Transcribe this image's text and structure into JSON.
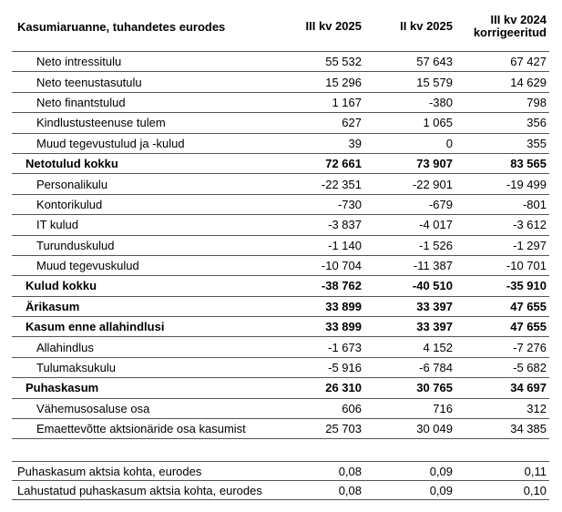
{
  "colors": {
    "background": "#ffffff",
    "text": "#000000",
    "rule_line": "#555555"
  },
  "header": {
    "title": "Kasumiaruanne, tuhandetes eurodes",
    "columns": [
      "III kv 2025",
      "II kv 2025",
      "III kv 2024 korrigeeritud"
    ]
  },
  "table": {
    "rows": [
      {
        "label": "Neto intressitulu",
        "indent": "sub",
        "emphasis": false,
        "values": [
          "55 532",
          "57 643",
          "67 427"
        ]
      },
      {
        "label": "Neto teenustasutulu",
        "indent": "sub",
        "emphasis": false,
        "values": [
          "15 296",
          "15 579",
          "14 629"
        ]
      },
      {
        "label": "Neto finantstulud",
        "indent": "sub",
        "emphasis": false,
        "values": [
          "1 167",
          "-380",
          "798"
        ]
      },
      {
        "label": "Kindlustusteenuse tulem",
        "indent": "sub",
        "emphasis": false,
        "values": [
          "627",
          "1 065",
          "356"
        ]
      },
      {
        "label": "Muud tegevustulud ja -kulud",
        "indent": "sub",
        "emphasis": false,
        "values": [
          "39",
          "0",
          "355"
        ]
      },
      {
        "label": "Netotulud kokku",
        "indent": "main",
        "emphasis": true,
        "values": [
          "72 661",
          "73 907",
          "83 565"
        ]
      },
      {
        "label": "Personalikulu",
        "indent": "sub",
        "emphasis": false,
        "values": [
          "-22 351",
          "-22 901",
          "-19 499"
        ]
      },
      {
        "label": "Kontorikulud",
        "indent": "sub",
        "emphasis": false,
        "values": [
          "-730",
          "-679",
          "-801"
        ]
      },
      {
        "label": "IT kulud",
        "indent": "sub",
        "emphasis": false,
        "values": [
          "-3 837",
          "-4 017",
          "-3 612"
        ]
      },
      {
        "label": "Turunduskulud",
        "indent": "sub",
        "emphasis": false,
        "values": [
          "-1 140",
          "-1 526",
          "-1 297"
        ]
      },
      {
        "label": "Muud tegevuskulud",
        "indent": "sub",
        "emphasis": false,
        "values": [
          "-10 704",
          "-11 387",
          "-10 701"
        ]
      },
      {
        "label": "Kulud kokku",
        "indent": "main",
        "emphasis": true,
        "values": [
          "-38 762",
          "-40 510",
          "-35 910"
        ]
      },
      {
        "label": "Ärikasum",
        "indent": "main",
        "emphasis": true,
        "values": [
          "33 899",
          "33 397",
          "47 655"
        ]
      },
      {
        "label": "Kasum enne allahindlusi",
        "indent": "main",
        "emphasis": true,
        "values": [
          "33 899",
          "33 397",
          "47 655"
        ]
      },
      {
        "label": "Allahindlus",
        "indent": "sub",
        "emphasis": false,
        "values": [
          "-1 673",
          "4 152",
          "-7 276"
        ]
      },
      {
        "label": "Tulumaksukulu",
        "indent": "sub",
        "emphasis": false,
        "values": [
          "-5 916",
          "-6 784",
          "-5 682"
        ]
      },
      {
        "label": "Puhaskasum",
        "indent": "main",
        "emphasis": true,
        "values": [
          "26 310",
          "30 765",
          "34 697"
        ]
      },
      {
        "label": "Vähemusosaluse osa",
        "indent": "sub",
        "emphasis": false,
        "values": [
          "606",
          "716",
          "312"
        ]
      },
      {
        "label": "Emaettevõtte aktsionäride osa kasumist",
        "indent": "sub",
        "emphasis": false,
        "values": [
          "25 703",
          "30 049",
          "34 385"
        ]
      }
    ],
    "per_share_rows": [
      {
        "label": "Puhaskasum aktsia kohta, eurodes",
        "indent": "none",
        "emphasis": false,
        "values": [
          "0,08",
          "0,09",
          "0,11"
        ]
      },
      {
        "label": "Lahustatud puhaskasum aktsia kohta, eurodes",
        "indent": "none",
        "emphasis": false,
        "values": [
          "0,08",
          "0,09",
          "0,10"
        ]
      }
    ]
  }
}
